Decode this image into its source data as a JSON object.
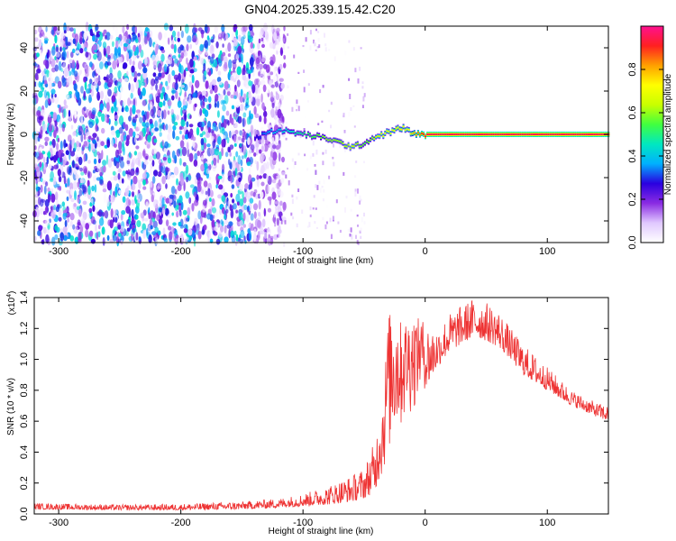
{
  "title": "GN04.2025.339.15.42.C20",
  "chart_data": [
    {
      "type": "heatmap",
      "title": "GN04.2025.339.15.42.C20",
      "xlabel": "Height of straight line (km)",
      "ylabel": "Frequency (Hz)",
      "xlim": [
        -320,
        150
      ],
      "ylim": [
        -50,
        50
      ],
      "xticks": [
        -300,
        -200,
        -100,
        0,
        100
      ],
      "yticks": [
        -40,
        -20,
        0,
        20,
        40
      ],
      "colorbar": {
        "label": "Normalized spectral amplitude",
        "range": [
          0,
          1
        ],
        "ticks": [
          0.0,
          0.2,
          0.4,
          0.6,
          0.8
        ],
        "colormap": [
          "#ffffff",
          "#e0c8ff",
          "#8a2be2",
          "#2a00e0",
          "#00b0ff",
          "#00e8c0",
          "#40ff40",
          "#c8ff00",
          "#ffff00",
          "#ffa000",
          "#ff2020",
          "#ff1090"
        ]
      },
      "noise_band": {
        "x_range": [
          -320,
          -125
        ],
        "level": 0.35
      },
      "signal_track": {
        "x": [
          -140,
          -130,
          -120,
          -110,
          -100,
          -90,
          -80,
          -70,
          -60,
          -55,
          -50,
          -45,
          -40,
          -35,
          -30,
          -25,
          -20,
          -15,
          -10,
          -5,
          0,
          50,
          100,
          150
        ],
        "freq": [
          -2,
          1,
          2,
          1,
          0,
          -1,
          -2,
          -4,
          -6,
          -5,
          -4,
          -2,
          -1,
          0,
          1,
          2,
          3,
          2,
          0,
          0,
          0,
          0,
          0,
          0
        ],
        "amplitude": [
          0.25,
          0.35,
          0.4,
          0.45,
          0.5,
          0.55,
          0.6,
          0.6,
          0.65,
          0.6,
          0.55,
          0.6,
          0.65,
          0.7,
          0.7,
          0.7,
          0.75,
          0.7,
          0.8,
          0.85,
          0.95,
          0.95,
          0.95,
          0.95
        ]
      }
    },
    {
      "type": "line",
      "xlabel": "Height of straight line (km)",
      "ylabel": "SNR (10 * v/v)",
      "y_multiplier": "(x10",
      "y_multiplier_exp": "4",
      "y_multiplier_close": ")",
      "xlim": [
        -320,
        150
      ],
      "ylim": [
        0,
        14000
      ],
      "xticks": [
        -300,
        -200,
        -100,
        0,
        100
      ],
      "yticks": [
        0,
        2000,
        4000,
        6000,
        8000,
        10000,
        12000,
        14000
      ],
      "ytick_labels": [
        "0.0",
        "0.2",
        "0.4",
        "0.6",
        "0.8",
        "1.0",
        "1.2",
        "1.4"
      ],
      "color": "#ee3333",
      "envelope": {
        "x": [
          -320,
          -250,
          -200,
          -150,
          -120,
          -100,
          -80,
          -60,
          -50,
          -40,
          -35,
          -30,
          -25,
          -20,
          -10,
          0,
          10,
          20,
          30,
          40,
          50,
          60,
          70,
          80,
          100,
          120,
          140,
          150
        ],
        "lo": [
          300,
          250,
          250,
          300,
          400,
          500,
          600,
          800,
          1000,
          1500,
          2000,
          3500,
          4000,
          5000,
          6500,
          8000,
          9500,
          10500,
          11000,
          11500,
          11200,
          10800,
          10000,
          9000,
          8000,
          7000,
          6300,
          6000
        ],
        "hi": [
          700,
          600,
          650,
          800,
          1000,
          1300,
          1800,
          2500,
          3000,
          5000,
          7000,
          13000,
          13200,
          12500,
          12800,
          12500,
          12000,
          13000,
          13500,
          14000,
          13700,
          13200,
          12000,
          11000,
          9500,
          8000,
          7200,
          7000
        ]
      }
    }
  ]
}
